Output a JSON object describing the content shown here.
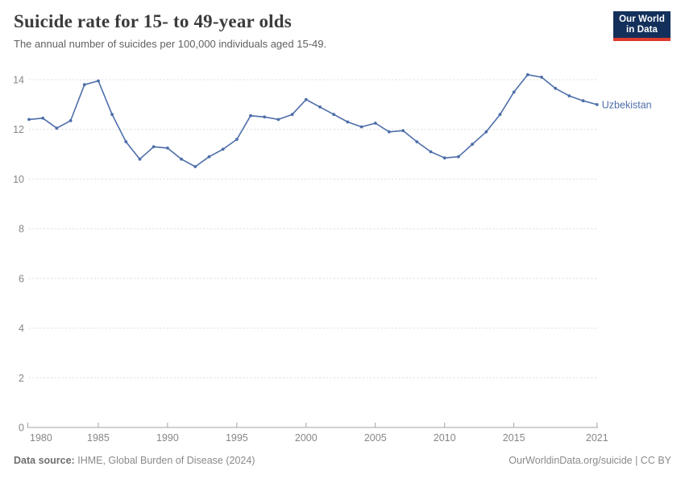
{
  "header": {
    "title": "Suicide rate for 15- to 49-year olds",
    "subtitle": "The annual number of suicides per 100,000 individuals aged 15-49.",
    "logo_line1": "Our World",
    "logo_line2": "in Data"
  },
  "chart_data": {
    "type": "line",
    "title": "Suicide rate for 15- to 49-year olds",
    "subtitle": "The annual number of suicides per 100,000 individuals aged 15-49.",
    "xlabel": "",
    "ylabel": "",
    "xlim": [
      1980,
      2021
    ],
    "ylim": [
      0,
      14
    ],
    "grid": "horizontal-dashed",
    "legend_position": "end-of-line-label",
    "x_ticks": [
      1980,
      1985,
      1990,
      1995,
      2000,
      2005,
      2010,
      2015,
      2021
    ],
    "y_ticks": [
      0,
      2,
      4,
      6,
      8,
      10,
      12,
      14
    ],
    "x": [
      1980,
      1981,
      1982,
      1983,
      1984,
      1985,
      1986,
      1987,
      1988,
      1989,
      1990,
      1991,
      1992,
      1993,
      1994,
      1995,
      1996,
      1997,
      1998,
      1999,
      2000,
      2001,
      2002,
      2003,
      2004,
      2005,
      2006,
      2007,
      2008,
      2009,
      2010,
      2011,
      2012,
      2013,
      2014,
      2015,
      2016,
      2017,
      2018,
      2019,
      2020,
      2021
    ],
    "series": [
      {
        "name": "Uzbekistan",
        "color": "#4d6ea9",
        "values": [
          12.4,
          12.45,
          12.05,
          12.35,
          13.8,
          13.95,
          12.6,
          11.5,
          10.8,
          11.3,
          11.25,
          10.8,
          10.5,
          10.9,
          11.2,
          11.6,
          12.55,
          12.5,
          12.4,
          12.6,
          13.2,
          12.9,
          12.6,
          12.3,
          12.1,
          12.25,
          11.9,
          11.95,
          11.5,
          11.1,
          10.85,
          10.9,
          11.4,
          11.9,
          12.6,
          13.5,
          14.2,
          14.1,
          13.65,
          13.35,
          13.15,
          13.0
        ]
      }
    ],
    "colors": {
      "gridline": "#dcdcdc",
      "axis": "#a3a3a3",
      "tick_label": "#878787"
    }
  },
  "footer": {
    "source_label": "Data source:",
    "source_value": "IHME, Global Burden of Disease (2024)",
    "credit": "OurWorldinData.org/suicide | CC BY"
  }
}
